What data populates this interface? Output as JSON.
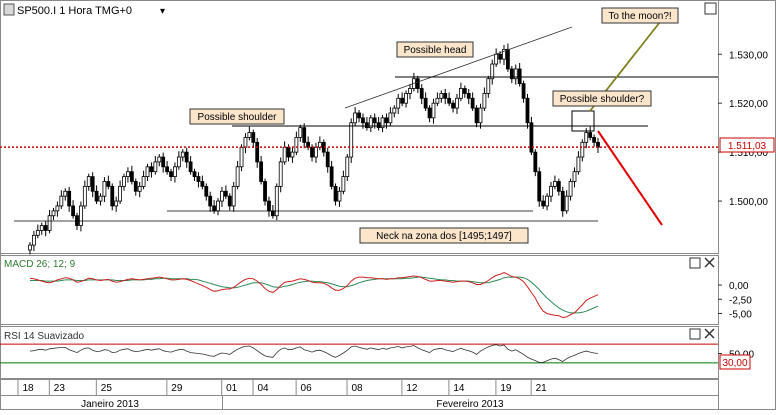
{
  "header": {
    "symbol_label": "SP500.I 1 Hora TMG+0",
    "dropdown_glyph": "▾"
  },
  "colors": {
    "background": "#ffffff",
    "panel_border": "#8a8a8a",
    "candle_up": "#ffffff",
    "candle_down": "#000000",
    "last_price_line": "#cc0000",
    "last_price_text": "#cc0000",
    "trendline": "#333333",
    "projection_up": "#808020",
    "projection_down": "#e00000",
    "annotation_fill": "#fbe6cc",
    "annotation_border": "#333333",
    "macd_line": "#cc2020",
    "signal_line": "#2e8b57",
    "rsi_line": "#333333",
    "rsi_upper": "#cc0000",
    "rsi_lower": "#007700"
  },
  "annotations": {
    "to_the_moon": "To the moon?!",
    "possible_head": "Possible head",
    "possible_shoulder_left": "Possible shoulder",
    "possible_shoulder_right": "Possible shoulder?",
    "neck": "Neck na zona dos [1495;1497]"
  },
  "chart_data": [
    {
      "type": "candlestick",
      "title": "SP500.I 1 Hora TMG+0",
      "ylim": [
        1490,
        1537
      ],
      "yticks": [
        "1.530,00",
        "1.520,00",
        "1.510,00",
        "1.500,00"
      ],
      "ytick_values": [
        1530,
        1520,
        1510,
        1500
      ],
      "last_price": 1511.03,
      "last_price_label": "1.511,03",
      "grid": false,
      "closes": [
        1491,
        1493,
        1494,
        1495,
        1494,
        1497,
        1498,
        1499,
        1501,
        1502,
        1499,
        1497,
        1495,
        1499,
        1503,
        1505,
        1502,
        1500,
        1501,
        1504,
        1503,
        1499,
        1500,
        1503,
        1505,
        1506,
        1504,
        1502,
        1503,
        1505,
        1507,
        1506,
        1508,
        1509,
        1507,
        1506,
        1505,
        1507,
        1509,
        1510,
        1508,
        1506,
        1505,
        1504,
        1503,
        1501,
        1499,
        1498,
        1500,
        1502,
        1501,
        1499,
        1503,
        1507,
        1511,
        1513,
        1514,
        1512,
        1508,
        1504,
        1500,
        1498,
        1497,
        1503,
        1508,
        1511,
        1509,
        1510,
        1513,
        1515,
        1512,
        1511,
        1509,
        1511,
        1512,
        1510,
        1507,
        1503,
        1500,
        1502,
        1505,
        1509,
        1516,
        1518,
        1517,
        1516,
        1515,
        1517,
        1516,
        1515,
        1517,
        1516,
        1518,
        1519,
        1521,
        1520,
        1522,
        1523,
        1525,
        1523,
        1521,
        1519,
        1517,
        1520,
        1521,
        1522,
        1521,
        1520,
        1519,
        1521,
        1523,
        1522,
        1521,
        1519,
        1516,
        1519,
        1522,
        1525,
        1528,
        1530,
        1529,
        1531,
        1527,
        1525,
        1527,
        1524,
        1521,
        1516,
        1510,
        1506,
        1500,
        1499,
        1501,
        1503,
        1504,
        1502,
        1498,
        1501,
        1504,
        1506,
        1509,
        1512,
        1514,
        1513,
        1512,
        1511.03
      ],
      "macd": {
        "name": "MACD 26; 12; 9",
        "ylim": [
          -6.5,
          3
        ],
        "yticks": [
          "0,00",
          "-2,50",
          "-5,00"
        ],
        "ytick_values": [
          0,
          -2.5,
          -5
        ],
        "macd_values": [
          1.2,
          1.1,
          0.9,
          0.7,
          0.5,
          0.4,
          0.6,
          0.9,
          1.1,
          1.3,
          1.2,
          0.9,
          0.5,
          0.6,
          0.9,
          1.2,
          1.1,
          0.9,
          0.8,
          0.9,
          1.0,
          0.7,
          0.5,
          0.6,
          0.8,
          1.0,
          1.1,
          1.0,
          0.9,
          1.0,
          1.1,
          1.2,
          1.3,
          1.4,
          1.3,
          1.1,
          0.9,
          0.9,
          1.0,
          1.1,
          1.0,
          0.8,
          0.5,
          0.2,
          -0.1,
          -0.4,
          -0.8,
          -1.1,
          -1.0,
          -0.8,
          -0.7,
          -0.7,
          -0.4,
          0.1,
          0.6,
          1.0,
          1.2,
          1.1,
          0.7,
          0.1,
          -0.6,
          -1.1,
          -1.3,
          -0.8,
          -0.1,
          0.5,
          0.6,
          0.7,
          0.9,
          1.1,
          1.0,
          0.8,
          0.5,
          0.4,
          0.4,
          0.3,
          0.0,
          -0.5,
          -0.9,
          -0.9,
          -0.6,
          -0.1,
          0.7,
          1.2,
          1.4,
          1.4,
          1.3,
          1.3,
          1.2,
          1.1,
          1.1,
          1.0,
          1.1,
          1.1,
          1.3,
          1.3,
          1.4,
          1.5,
          1.6,
          1.5,
          1.3,
          1.0,
          0.7,
          0.7,
          0.8,
          0.8,
          0.7,
          0.6,
          0.5,
          0.6,
          0.7,
          0.7,
          0.6,
          0.4,
          0.1,
          0.1,
          0.4,
          0.8,
          1.3,
          1.7,
          1.9,
          2.2,
          1.9,
          1.5,
          1.4,
          1.1,
          0.6,
          -0.3,
          -1.3,
          -2.3,
          -3.6,
          -4.6,
          -5.0,
          -5.2,
          -5.3,
          -5.4,
          -5.7,
          -5.6,
          -5.2,
          -4.9,
          -4.2,
          -3.5,
          -2.7,
          -2.3,
          -2.0,
          -1.7
        ],
        "signal_values": [
          0.8,
          0.8,
          0.8,
          0.8,
          0.7,
          0.7,
          0.7,
          0.7,
          0.8,
          0.9,
          0.9,
          0.9,
          0.8,
          0.8,
          0.8,
          0.9,
          0.9,
          0.9,
          0.9,
          0.9,
          0.9,
          0.9,
          0.8,
          0.8,
          0.8,
          0.8,
          0.9,
          0.9,
          0.9,
          0.9,
          1.0,
          1.0,
          1.1,
          1.1,
          1.2,
          1.2,
          1.1,
          1.1,
          1.1,
          1.1,
          1.1,
          1.0,
          1.0,
          0.9,
          0.7,
          0.5,
          0.3,
          0.1,
          -0.1,
          -0.3,
          -0.4,
          -0.5,
          -0.5,
          -0.4,
          -0.2,
          0.0,
          0.2,
          0.4,
          0.4,
          0.4,
          0.2,
          0.0,
          -0.3,
          -0.4,
          -0.4,
          -0.2,
          -0.1,
          0.1,
          0.3,
          0.5,
          0.6,
          0.7,
          0.7,
          0.6,
          0.6,
          0.5,
          0.4,
          0.2,
          0.0,
          -0.2,
          -0.3,
          -0.3,
          -0.1,
          0.1,
          0.4,
          0.6,
          0.8,
          0.9,
          1.0,
          1.1,
          1.1,
          1.1,
          1.1,
          1.1,
          1.1,
          1.1,
          1.2,
          1.2,
          1.3,
          1.4,
          1.4,
          1.3,
          1.2,
          1.1,
          1.0,
          0.9,
          0.9,
          0.8,
          0.8,
          0.7,
          0.7,
          0.7,
          0.7,
          0.6,
          0.5,
          0.4,
          0.4,
          0.4,
          0.6,
          0.8,
          1.0,
          1.3,
          1.4,
          1.4,
          1.4,
          1.4,
          1.3,
          1.0,
          0.5,
          -0.1,
          -0.8,
          -1.6,
          -2.3,
          -2.9,
          -3.5,
          -4.0,
          -4.4,
          -4.7,
          -4.9,
          -4.9,
          -4.9,
          -4.8,
          -4.6,
          -4.3,
          -4.0,
          -3.7
        ]
      },
      "rsi": {
        "name": "RSI 14 Suavizado",
        "ylim": [
          0,
          100
        ],
        "yticks": [
          "50,00"
        ],
        "ytick_values": [
          50
        ],
        "upper_level": 70,
        "lower_level_label": "30,00",
        "lower_level": 30,
        "values": [
          55,
          56,
          58,
          59,
          57,
          60,
          61,
          62,
          63,
          63,
          58,
          55,
          52,
          57,
          61,
          62,
          57,
          54,
          55,
          58,
          57,
          52,
          53,
          57,
          59,
          60,
          56,
          54,
          55,
          57,
          59,
          57,
          59,
          60,
          56,
          54,
          53,
          56,
          58,
          59,
          55,
          52,
          51,
          50,
          49,
          47,
          45,
          44,
          48,
          51,
          50,
          48,
          54,
          59,
          63,
          65,
          66,
          62,
          56,
          50,
          45,
          43,
          42,
          52,
          59,
          62,
          58,
          59,
          62,
          64,
          58,
          56,
          53,
          56,
          57,
          54,
          50,
          45,
          42,
          46,
          51,
          57,
          64,
          66,
          63,
          61,
          59,
          62,
          60,
          58,
          61,
          59,
          62,
          63,
          65,
          62,
          64,
          65,
          67,
          62,
          58,
          55,
          52,
          58,
          60,
          61,
          58,
          56,
          54,
          58,
          61,
          58,
          56,
          53,
          48,
          55,
          60,
          64,
          67,
          69,
          66,
          68,
          59,
          55,
          58,
          53,
          48,
          42,
          38,
          35,
          31,
          31,
          35,
          38,
          40,
          37,
          33,
          39,
          43,
          46,
          50,
          53,
          55,
          53,
          51,
          50
        ]
      },
      "x_ticks": [
        "18",
        "23",
        "25",
        "29",
        "01",
        "04",
        "06",
        "08",
        "12",
        "14",
        "19",
        "21"
      ],
      "x_tick_bars": [
        0,
        8,
        20,
        38,
        52,
        60,
        71,
        84,
        98,
        110,
        122,
        131
      ],
      "month_labels": [
        "Janeiro 2013",
        "Fevereiro 2013"
      ]
    }
  ]
}
